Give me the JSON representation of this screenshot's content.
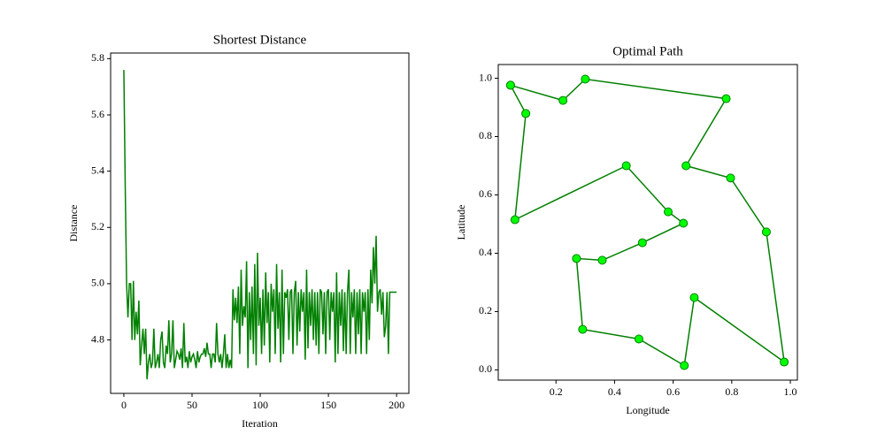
{
  "chart_data": [
    {
      "type": "line",
      "title": "Shortest Distance",
      "xlabel": "Iteration",
      "ylabel": "Distance",
      "x": [
        0,
        1,
        2,
        3,
        4,
        5,
        6,
        7,
        8,
        9,
        10,
        11,
        12,
        13,
        14,
        15,
        16,
        17,
        18,
        19,
        20,
        21,
        22,
        23,
        24,
        25,
        26,
        27,
        28,
        29,
        30,
        31,
        32,
        33,
        34,
        35,
        36,
        37,
        38,
        39,
        40,
        41,
        42,
        43,
        44,
        45,
        46,
        47,
        48,
        49,
        50,
        51,
        52,
        53,
        54,
        55,
        56,
        57,
        58,
        59,
        60,
        61,
        62,
        63,
        64,
        65,
        66,
        67,
        68,
        69,
        70,
        71,
        72,
        73,
        74,
        75,
        76,
        77,
        78,
        79,
        80,
        81,
        82,
        83,
        84,
        85,
        86,
        87,
        88,
        89,
        90,
        91,
        92,
        93,
        94,
        95,
        96,
        97,
        98,
        99,
        100,
        101,
        102,
        103,
        104,
        105,
        106,
        107,
        108,
        109,
        110,
        111,
        112,
        113,
        114,
        115,
        116,
        117,
        118,
        119,
        120,
        121,
        122,
        123,
        124,
        125,
        126,
        127,
        128,
        129,
        130,
        131,
        132,
        133,
        134,
        135,
        136,
        137,
        138,
        139,
        140,
        141,
        142,
        143,
        144,
        145,
        146,
        147,
        148,
        149,
        150,
        151,
        152,
        153,
        154,
        155,
        156,
        157,
        158,
        159,
        160,
        161,
        162,
        163,
        164,
        165,
        166,
        167,
        168,
        169,
        170,
        171,
        172,
        173,
        174,
        175,
        176,
        177,
        178,
        179,
        180,
        181,
        182,
        183,
        184,
        185,
        186,
        187,
        188,
        189,
        190,
        191,
        192,
        193,
        194,
        195,
        196,
        197,
        198,
        199,
        200
      ],
      "series": [
        {
          "color": "#008000",
          "values": [
            5.76,
            5.35,
            5.0,
            4.88,
            5.0,
            5.0,
            4.8,
            5.01,
            4.8,
            4.9,
            4.82,
            4.94,
            4.71,
            4.78,
            4.84,
            4.75,
            4.84,
            4.66,
            4.72,
            4.75,
            4.7,
            4.72,
            4.84,
            4.7,
            4.72,
            4.75,
            4.7,
            4.8,
            4.83,
            4.72,
            4.7,
            4.78,
            4.75,
            4.87,
            4.72,
            4.75,
            4.87,
            4.7,
            4.73,
            4.76,
            4.75,
            4.73,
            4.77,
            4.7,
            4.86,
            4.72,
            4.74,
            4.7,
            4.76,
            4.72,
            4.74,
            4.75,
            4.73,
            4.7,
            4.76,
            4.72,
            4.74,
            4.75,
            4.75,
            4.77,
            4.74,
            4.79,
            4.75,
            4.75,
            4.7,
            4.75,
            4.75,
            4.72,
            4.86,
            4.75,
            4.72,
            4.75,
            4.7,
            4.75,
            4.82,
            4.7,
            4.75,
            4.7,
            4.73,
            4.7,
            4.98,
            4.87,
            4.95,
            4.86,
            4.99,
            4.75,
            5.05,
            4.85,
            4.92,
            4.88,
            5.08,
            4.7,
            4.97,
            4.8,
            4.99,
            4.75,
            5.07,
            4.71,
            5.11,
            4.85,
            4.95,
            4.75,
            4.98,
            4.78,
            5.04,
            4.86,
            4.97,
            4.72,
            5.0,
            4.9,
            4.98,
            4.75,
            5.07,
            4.84,
            4.97,
            4.72,
            5.05,
            4.75,
            4.97,
            4.95,
            4.98,
            4.8,
            4.97,
            4.98,
            4.75,
            4.97,
            5.01,
            4.78,
            4.97,
            4.83,
            4.98,
            4.9,
            4.97,
            4.73,
            5.05,
            4.77,
            4.97,
            4.85,
            4.98,
            4.8,
            4.97,
            4.78,
            4.97,
            4.75,
            4.98,
            4.97,
            4.82,
            4.97,
            4.75,
            4.97,
            4.98,
            4.8,
            4.97,
            4.9,
            4.97,
            4.72,
            5.04,
            4.75,
            4.97,
            4.85,
            4.98,
            4.76,
            4.97,
            4.75,
            4.97,
            5.05,
            4.75,
            4.97,
            4.88,
            4.98,
            4.75,
            4.97,
            4.82,
            4.98,
            4.75,
            4.97,
            4.9,
            4.97,
            4.75,
            4.98,
            4.8,
            5.05,
            4.93,
            5.13,
            5.0,
            5.17,
            4.9,
            4.97,
            4.98,
            4.89,
            4.97,
            4.81,
            4.85,
            4.97,
            4.75,
            4.97,
            4.97,
            4.97,
            4.97,
            4.97,
            4.97
          ]
        }
      ],
      "xlim": [
        -9.7,
        209
      ],
      "xticks": [
        0,
        50,
        100,
        150,
        200
      ],
      "ylim": [
        4.61,
        5.82
      ],
      "yticks": [
        4.8,
        {
          "value": 5.0,
          "label": "5.0"
        },
        5.2,
        5.4,
        5.6,
        5.8
      ]
    },
    {
      "type": "line",
      "title": "Optimal Path",
      "xlabel": "Longitude",
      "ylabel": "Latitude",
      "markers": true,
      "marker_color": "#00ff00",
      "x": [
        0.045,
        0.097,
        0.06,
        0.44,
        0.583,
        0.635,
        0.495,
        0.358,
        0.27,
        0.291,
        0.483,
        0.638,
        0.672,
        0.979,
        0.918,
        0.796,
        0.644,
        0.781,
        0.3,
        0.224,
        0.045
      ],
      "series": [
        {
          "color": "#008000",
          "values": [
            0.976,
            0.879,
            0.515,
            0.7,
            0.542,
            0.503,
            0.436,
            0.376,
            0.382,
            0.139,
            0.106,
            0.015,
            0.248,
            0.027,
            0.473,
            0.658,
            0.7,
            0.93,
            0.997,
            0.924,
            0.976
          ]
        }
      ],
      "xlim": [
        0.003,
        1.024
      ],
      "xticks": [
        0.2,
        0.4,
        0.6,
        0.8,
        {
          "value": 1.0,
          "label": "1.0"
        }
      ],
      "ylim": [
        -0.035,
        1.047
      ],
      "yticks": [
        {
          "value": 0.0,
          "label": "0.0"
        },
        0.2,
        0.4,
        0.6,
        0.8,
        {
          "value": 1.0,
          "label": "1.0"
        }
      ]
    }
  ]
}
